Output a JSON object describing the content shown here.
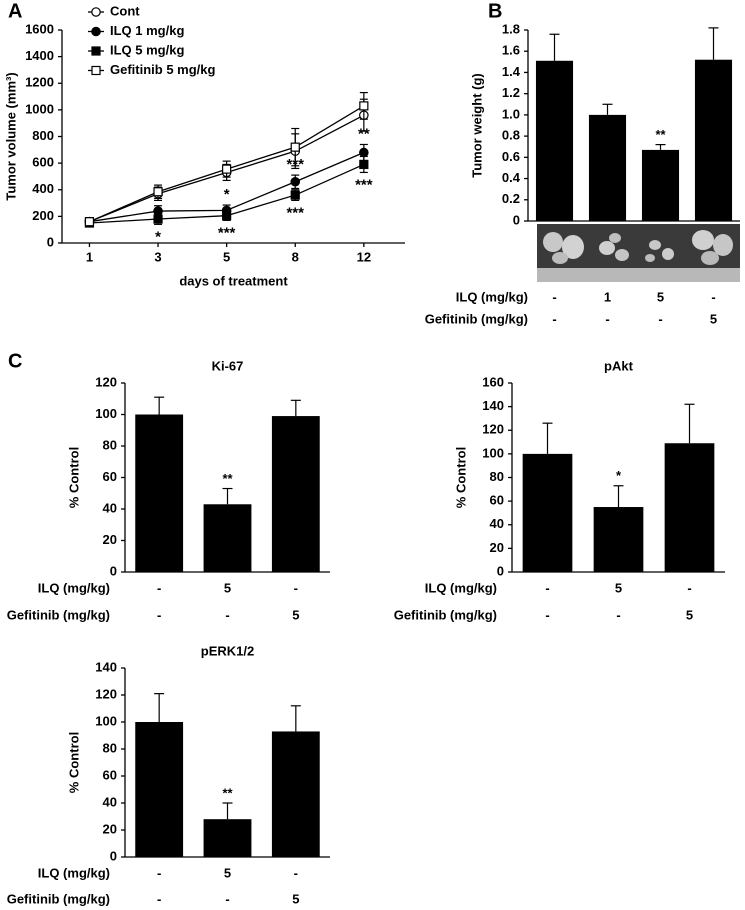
{
  "chart_data": [
    {
      "type": "line",
      "panel": "A",
      "xlabel": "days of treatment",
      "ylabel": "Tumor volume (mm³)",
      "categories": [
        "1",
        "3",
        "5",
        "8",
        "12"
      ],
      "ylim": [
        0,
        1600
      ],
      "yticks": [
        0,
        200,
        400,
        600,
        800,
        1000,
        1200,
        1400,
        1600
      ],
      "legend": "upper-left",
      "series": [
        {
          "name": "Cont",
          "color": "#000000",
          "marker": "open-circle",
          "values": [
            160,
            370,
            530,
            690,
            960
          ],
          "errors": [
            30,
            50,
            60,
            130,
            120
          ]
        },
        {
          "name": "ILQ 1 mg/kg",
          "color": "#000000",
          "marker": "filled-circle",
          "values": [
            160,
            240,
            245,
            460,
            680
          ],
          "errors": [
            25,
            40,
            40,
            50,
            60
          ],
          "significance": [
            null,
            null,
            "*",
            "***",
            "**"
          ],
          "significance_position": "above"
        },
        {
          "name": "ILQ 5 mg/kg",
          "color": "#000000",
          "marker": "filled-square",
          "values": [
            150,
            180,
            205,
            360,
            590
          ],
          "errors": [
            20,
            40,
            35,
            40,
            60
          ],
          "significance": [
            null,
            "*",
            "***",
            "***",
            "***"
          ],
          "significance_position": "below"
        },
        {
          "name": "Gefitinib 5 mg/kg",
          "color": "#000000",
          "marker": "open-square",
          "values": [
            160,
            385,
            555,
            720,
            1030
          ],
          "errors": [
            30,
            50,
            60,
            140,
            100
          ]
        }
      ]
    },
    {
      "type": "bar",
      "panel": "B",
      "ylabel": "Tumor weight (g)",
      "color": "#000000",
      "values": [
        1.51,
        1.0,
        0.67,
        1.52
      ],
      "errors": [
        0.25,
        0.1,
        0.05,
        0.3
      ],
      "significance": [
        null,
        null,
        "**",
        null
      ],
      "ylim": [
        0,
        1.8
      ],
      "yticks": [
        0,
        0.2,
        0.4,
        0.6,
        0.8,
        {
          "value": 1,
          "label": "1.0"
        },
        1.2,
        1.4,
        1.6,
        1.8
      ],
      "rows": [
        {
          "label": "ILQ (mg/kg)",
          "values": [
            "-",
            "1",
            "5",
            "-"
          ]
        },
        {
          "label": "Gefitinib (mg/kg)",
          "values": [
            "-",
            "-",
            "-",
            "5"
          ]
        }
      ]
    },
    {
      "type": "bar",
      "panel": "C",
      "title": "Ki-67",
      "ylabel": "% Control",
      "color": "#000000",
      "values": [
        100,
        43,
        99
      ],
      "errors": [
        11,
        10,
        10
      ],
      "significance": [
        null,
        "**",
        null
      ],
      "ylim": [
        0,
        120
      ],
      "yticks": [
        0,
        20,
        40,
        60,
        80,
        100,
        120
      ],
      "rows": [
        {
          "label": "ILQ (mg/kg)",
          "values": [
            "-",
            "5",
            "-"
          ]
        },
        {
          "label": "Gefitinib (mg/kg)",
          "values": [
            "-",
            "-",
            "5"
          ]
        }
      ]
    },
    {
      "type": "bar",
      "title": "pAkt",
      "ylabel": "% Control",
      "color": "#000000",
      "values": [
        100,
        55,
        109
      ],
      "errors": [
        26,
        18,
        33
      ],
      "significance": [
        null,
        "*",
        null
      ],
      "ylim": [
        0,
        160
      ],
      "yticks": [
        0,
        20,
        40,
        60,
        80,
        100,
        120,
        140,
        160
      ],
      "rows": [
        {
          "label": "ILQ (mg/kg)",
          "values": [
            "-",
            "5",
            "-"
          ]
        },
        {
          "label": "Gefitinib (mg/kg)",
          "values": [
            "-",
            "-",
            "5"
          ]
        }
      ]
    },
    {
      "type": "bar",
      "title": "pERK1/2",
      "ylabel": "% Control",
      "color": "#000000",
      "values": [
        100,
        28,
        93
      ],
      "errors": [
        21,
        12,
        19
      ],
      "significance": [
        null,
        "**",
        null
      ],
      "ylim": [
        0,
        140
      ],
      "yticks": [
        0,
        20,
        40,
        60,
        80,
        100,
        120,
        140
      ],
      "rows": [
        {
          "label": "ILQ (mg/kg)",
          "values": [
            "-",
            "5",
            "-"
          ]
        },
        {
          "label": "Gefitinib (mg/kg)",
          "values": [
            "-",
            "-",
            "5"
          ]
        }
      ]
    }
  ]
}
